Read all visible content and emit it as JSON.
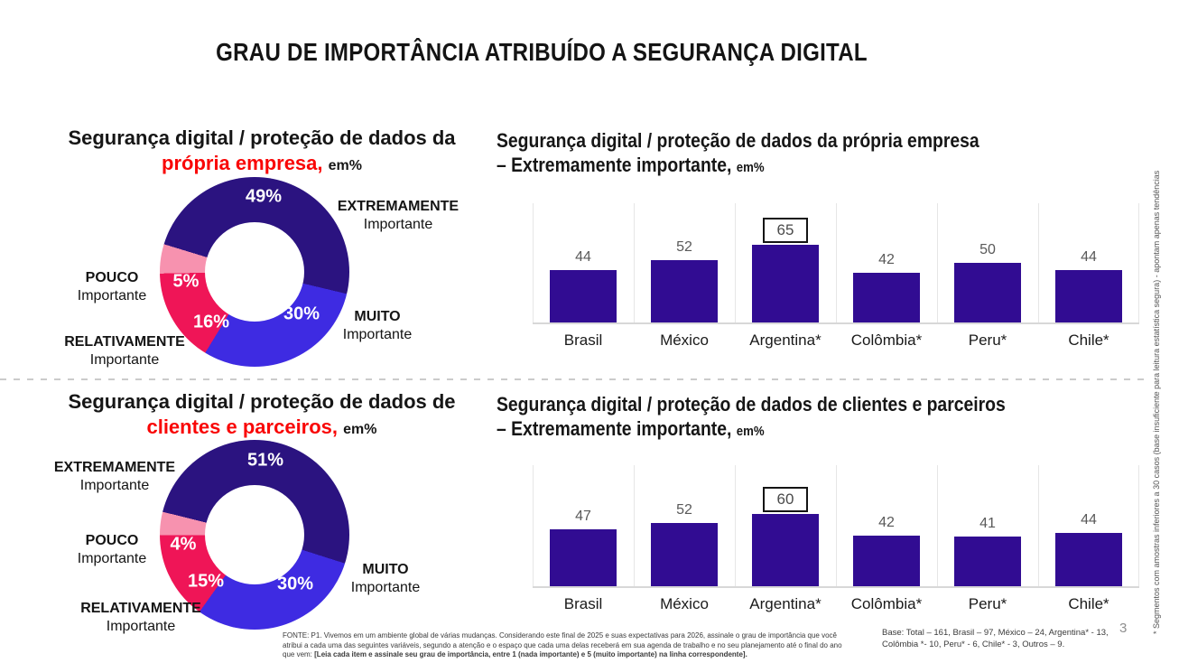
{
  "slide": {
    "title": "GRAU DE IMPORTÂNCIA ATRIBUÍDO A SEGURANÇA DIGITAL",
    "page_number": "3",
    "side_note": "* Segmentos com amostras inferiores a 30 casos (base insuficiente para leitura estatística segura) - apontam apenas tendências",
    "fonte_regular": "FONTE: P1. Vivemos em um ambiente global de várias mudanças. Considerando este final de 2025 e suas expectativas para 2026, assinale o grau de importância que você atribui a cada uma das seguintes variáveis, segundo a atenção e o espaço que cada uma delas receberá em sua agenda de trabalho e no seu planejamento até o final do ano que vem: ",
    "fonte_bold": "[Leia cada item e assinale seu grau de importância, entre 1 (nada importante) e 5 (muito importante) na linha correspondente].",
    "base_note": "Base: Total – 161, Brasil – 97, México – 24, Argentina* - 13, Colômbia *- 10, Peru* - 6, Chile* - 3, Outros – 9."
  },
  "colors": {
    "navy": "#2b1380",
    "bar_navy": "#310c92",
    "blue": "#3e2be2",
    "crimson": "#ef1557",
    "pink": "#f792af",
    "accent_red": "#f90606",
    "value_gray": "#595959",
    "grid_gray": "#e6e6e6"
  },
  "chart_data": [
    {
      "id": "donut-propria-empresa",
      "type": "pie",
      "title_line1": "Segurança digital / proteção de dados da",
      "title_highlight": "própria empresa,",
      "title_unit": "em%",
      "start_angle": 287,
      "legend_position": "around",
      "segments": [
        {
          "label": "EXTREMAMENTE",
          "sublabel": "Importante",
          "value": 49,
          "pct": "49%",
          "color_key": "navy"
        },
        {
          "label": "MUITO",
          "sublabel": "Importante",
          "value": 30,
          "pct": "30%",
          "color_key": "blue"
        },
        {
          "label": "RELATIVAMENTE",
          "sublabel": "Importante",
          "value": 16,
          "pct": "16%",
          "color_key": "crimson"
        },
        {
          "label": "POUCO",
          "sublabel": "Importante",
          "value": 5,
          "pct": "5%",
          "color_key": "pink"
        }
      ]
    },
    {
      "id": "bar-propria-empresa",
      "type": "bar",
      "title_line1": "Segurança digital / proteção de dados da própria empresa",
      "title_line2": "– Extremamente importante,",
      "title_unit": "em%",
      "categories": [
        "Brasil",
        "México",
        "Argentina*",
        "Colômbia*",
        "Peru*",
        "Chile*"
      ],
      "values": [
        44,
        52,
        65,
        42,
        50,
        44
      ],
      "highlight_index": 2,
      "ylim": [
        0,
        100
      ],
      "grid": "vertical-category-lines"
    },
    {
      "id": "donut-clientes-parceiros",
      "type": "pie",
      "title_line1": "Segurança digital / proteção de dados de",
      "title_highlight": "clientes e parceiros,",
      "title_unit": "em%",
      "start_angle": 284,
      "legend_position": "around",
      "segments": [
        {
          "label": "EXTREMAMENTE",
          "sublabel": "Importante",
          "value": 51,
          "pct": "51%",
          "color_key": "navy"
        },
        {
          "label": "MUITO",
          "sublabel": "Importante",
          "value": 30,
          "pct": "30%",
          "color_key": "blue"
        },
        {
          "label": "RELATIVAMENTE",
          "sublabel": "Importante",
          "value": 15,
          "pct": "15%",
          "color_key": "crimson"
        },
        {
          "label": "POUCO",
          "sublabel": "Importante",
          "value": 4,
          "pct": "4%",
          "color_key": "pink"
        }
      ]
    },
    {
      "id": "bar-clientes-parceiros",
      "type": "bar",
      "title_line1": "Segurança digital / proteção de dados de clientes e parceiros",
      "title_line2": "– Extremamente importante,",
      "title_unit": "em%",
      "categories": [
        "Brasil",
        "México",
        "Argentina*",
        "Colômbia*",
        "Peru*",
        "Chile*"
      ],
      "values": [
        47,
        52,
        60,
        42,
        41,
        44
      ],
      "highlight_index": 2,
      "ylim": [
        0,
        100
      ],
      "grid": "vertical-category-lines"
    }
  ]
}
